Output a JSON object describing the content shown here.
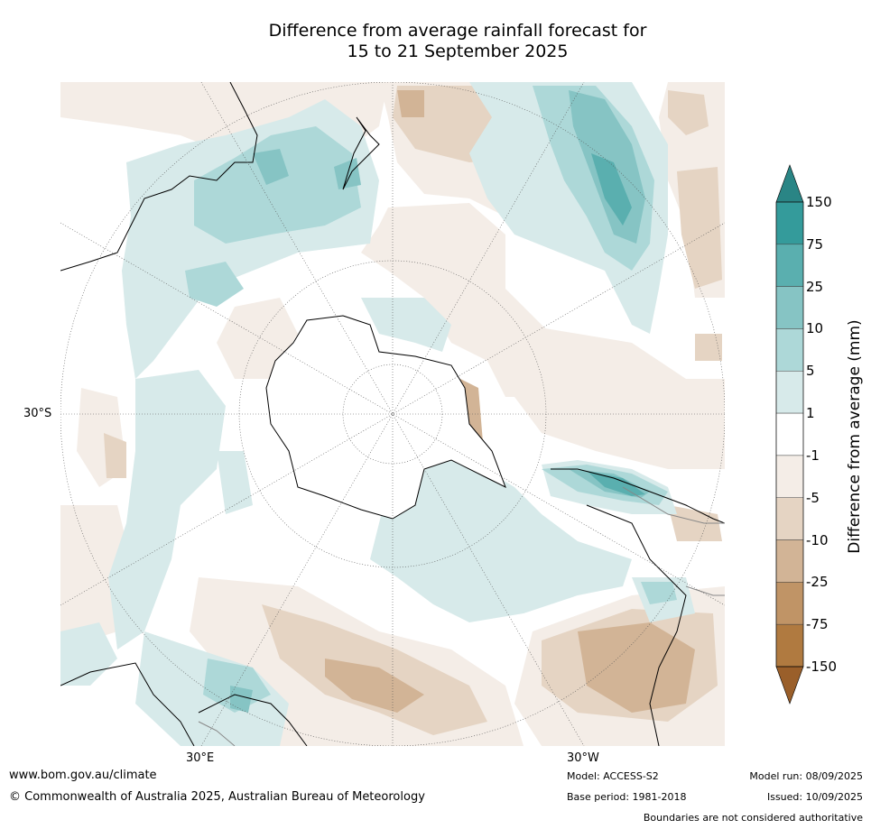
{
  "title": {
    "line1": "Difference from average rainfall forecast for",
    "line2": "15 to 21 September 2025"
  },
  "colorbar": {
    "title": "Difference from average (mm)",
    "labels": [
      "150",
      "75",
      "25",
      "10",
      "5",
      "1",
      "-1",
      "-5",
      "-10",
      "-25",
      "-75",
      "-150"
    ],
    "colors": [
      "#2a8585",
      "#349b9b",
      "#5aafaf",
      "#86c4c4",
      "#add8d8",
      "#d7eaea",
      "#ffffff",
      "#f4ede7",
      "#e5d4c3",
      "#d2b496",
      "#c09466",
      "#b07a40",
      "#9a5f2a"
    ]
  },
  "axis_labels": {
    "lat_left": "30°S",
    "lon_bottom_left": "30°E",
    "lon_bottom_right": "30°W"
  },
  "footer": {
    "website": "www.bom.gov.au/climate",
    "copyright": "© Commonwealth of Australia 2025, Australian Bureau of Meteorology",
    "model": "Model: ACCESS-S2",
    "base_period": "Base period: 1981-2018",
    "model_run": "Model run: 08/09/2025",
    "issued": "Issued: 10/09/2025",
    "disclaimer": "Boundaries are not considered authoritative"
  }
}
